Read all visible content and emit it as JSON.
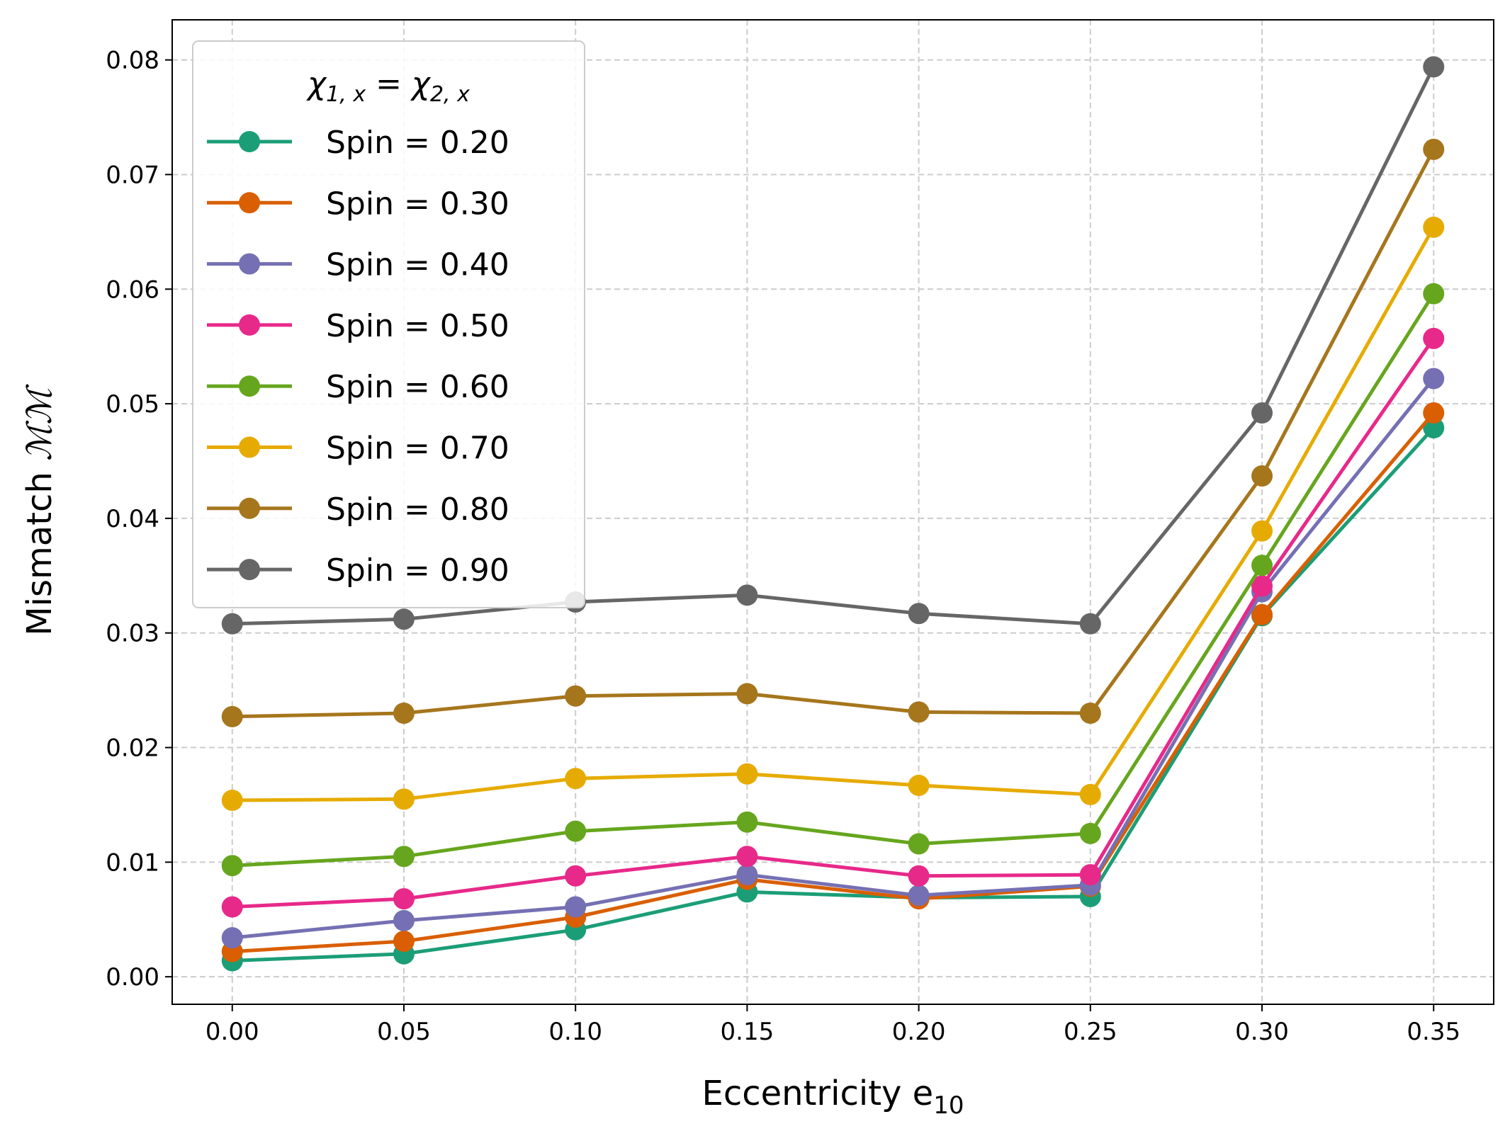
{
  "chart_data": {
    "type": "line",
    "title": "",
    "xlabel": "Eccentricity e",
    "xlabel_sub": "10",
    "ylabel": "Mismatch ",
    "ylabel_math": "ℳℳ",
    "x": [
      0.0,
      0.05,
      0.1,
      0.15,
      0.2,
      0.25,
      0.3,
      0.35
    ],
    "x_tick_labels": [
      "0.00",
      "0.05",
      "0.10",
      "0.15",
      "0.20",
      "0.25",
      "0.30",
      "0.35"
    ],
    "y_tick_values": [
      0.0,
      0.01,
      0.02,
      0.03,
      0.04,
      0.05,
      0.06,
      0.07,
      0.08
    ],
    "y_tick_labels": [
      "0.00",
      "0.01",
      "0.02",
      "0.03",
      "0.04",
      "0.05",
      "0.06",
      "0.07",
      "0.08"
    ],
    "xlim": [
      -0.0175,
      0.3675
    ],
    "ylim": [
      -0.0024,
      0.0835
    ],
    "grid": true,
    "legend_position": "upper-left",
    "legend_title": {
      "chi": "χ",
      "s1": "1, x",
      "eq": " = ",
      "s2": "2, x"
    },
    "series": [
      {
        "name": "Spin = 0.20",
        "color": "#1b9e77",
        "values": [
          0.0014,
          0.002,
          0.0041,
          0.0074,
          0.0069,
          0.007,
          0.0315,
          0.0479
        ]
      },
      {
        "name": "Spin = 0.30",
        "color": "#d95f02",
        "values": [
          0.0022,
          0.0031,
          0.0052,
          0.0085,
          0.0068,
          0.0079,
          0.0316,
          0.0492
        ]
      },
      {
        "name": "Spin = 0.40",
        "color": "#7570b3",
        "values": [
          0.0034,
          0.0049,
          0.0061,
          0.0089,
          0.0071,
          0.008,
          0.0336,
          0.0522
        ]
      },
      {
        "name": "Spin = 0.50",
        "color": "#e7298a",
        "values": [
          0.0061,
          0.0068,
          0.0088,
          0.0105,
          0.0088,
          0.0089,
          0.0341,
          0.0557
        ]
      },
      {
        "name": "Spin = 0.60",
        "color": "#66a61e",
        "values": [
          0.0097,
          0.0105,
          0.0127,
          0.0135,
          0.0116,
          0.0125,
          0.0359,
          0.0596
        ]
      },
      {
        "name": "Spin = 0.70",
        "color": "#e6ab02",
        "values": [
          0.0154,
          0.0155,
          0.0173,
          0.0177,
          0.0167,
          0.0159,
          0.0389,
          0.0654
        ]
      },
      {
        "name": "Spin = 0.80",
        "color": "#a6761d",
        "values": [
          0.0227,
          0.023,
          0.0245,
          0.0247,
          0.0231,
          0.023,
          0.0437,
          0.0722
        ]
      },
      {
        "name": "Spin = 0.90",
        "color": "#666666",
        "values": [
          0.0308,
          0.0312,
          0.0327,
          0.0333,
          0.0317,
          0.0308,
          0.0492,
          0.0794
        ]
      }
    ]
  }
}
